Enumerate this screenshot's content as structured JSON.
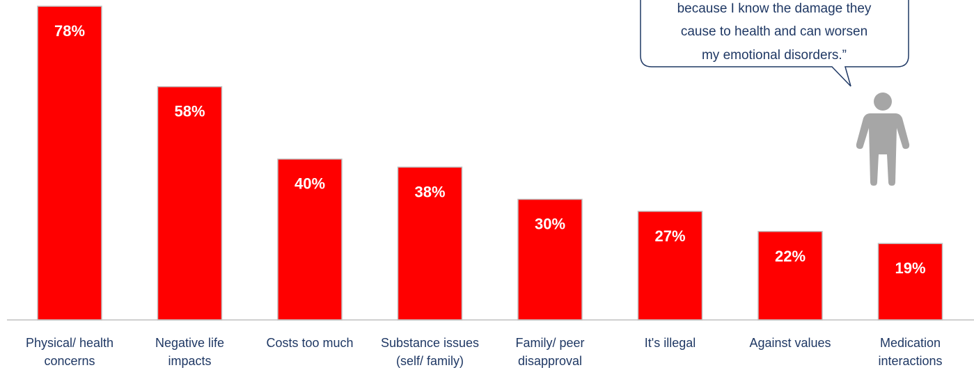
{
  "chart_data": {
    "type": "bar",
    "categories": [
      [
        "Physical/ health",
        "concerns"
      ],
      [
        "Negative life",
        "impacts"
      ],
      [
        "Costs too much"
      ],
      [
        "Substance issues",
        "(self/ family)"
      ],
      [
        "Family/ peer",
        "disapproval"
      ],
      [
        "It's illegal"
      ],
      [
        "Against values"
      ],
      [
        "Medication",
        "interactions"
      ]
    ],
    "values": [
      78,
      58,
      40,
      38,
      30,
      27,
      22,
      19
    ],
    "data_labels": [
      "78%",
      "58%",
      "40%",
      "38%",
      "30%",
      "27%",
      "22%",
      "19%"
    ],
    "ylim": [
      0,
      78
    ],
    "grid": false,
    "bar_color": "#ff0000",
    "bar_edge_color": "#bfbfbf"
  },
  "quote": {
    "lines": [
      "because I know the damage they",
      "cause to health and can worsen",
      "my emotional disorders.”"
    ],
    "border_color": "#1f3864",
    "text_color": "#1f3864"
  },
  "person_icon": {
    "icon": "person-icon",
    "color": "#a6a6a6"
  }
}
